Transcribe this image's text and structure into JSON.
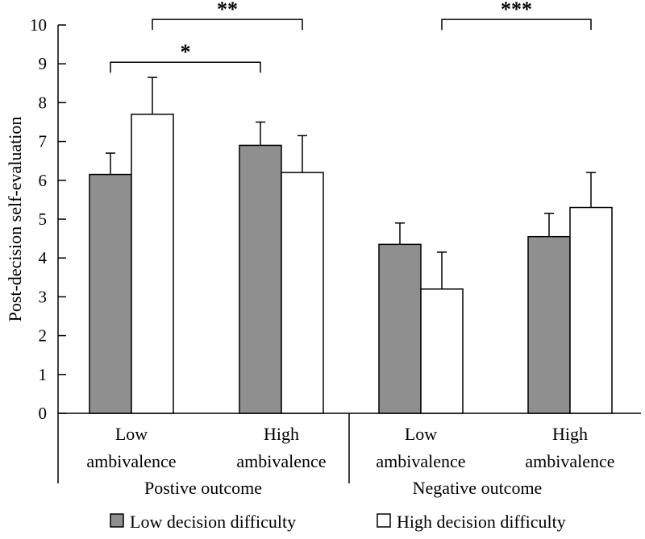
{
  "chart_data": {
    "type": "bar",
    "ylabel": "Post-decision self-evaluation",
    "ylim": [
      0,
      10
    ],
    "yticks": [
      "0",
      "1",
      "2",
      "3",
      "4",
      "5",
      "6",
      "7",
      "8",
      "9",
      "10"
    ],
    "groups": [
      {
        "label": "Postive outcome",
        "categories": [
          [
            "Low",
            "ambivalence"
          ],
          [
            "High",
            "ambivalence"
          ]
        ]
      },
      {
        "label": "Negative outcome",
        "categories": [
          [
            "Low",
            "ambivalence"
          ],
          [
            "High",
            "ambivalence"
          ]
        ]
      }
    ],
    "series": [
      {
        "name": "Low decision difficulty",
        "color": "#8f8f8f",
        "values": [
          6.15,
          6.9,
          4.35,
          4.55
        ],
        "errors": [
          0.55,
          0.6,
          0.55,
          0.6
        ]
      },
      {
        "name": "High decision difficulty",
        "color": "#ffffff",
        "values": [
          7.7,
          6.2,
          3.2,
          5.3
        ],
        "errors": [
          0.95,
          0.95,
          0.95,
          0.9
        ]
      }
    ],
    "annotations": [
      {
        "text": "*",
        "from": [
          0,
          0
        ],
        "to": [
          1,
          0
        ],
        "level": 9
      },
      {
        "text": "**",
        "from": [
          0,
          1
        ],
        "to": [
          1,
          1
        ],
        "level": 10.1
      },
      {
        "text": "***",
        "from": [
          2,
          1
        ],
        "to": [
          3,
          1
        ],
        "level": 10.1
      }
    ]
  }
}
